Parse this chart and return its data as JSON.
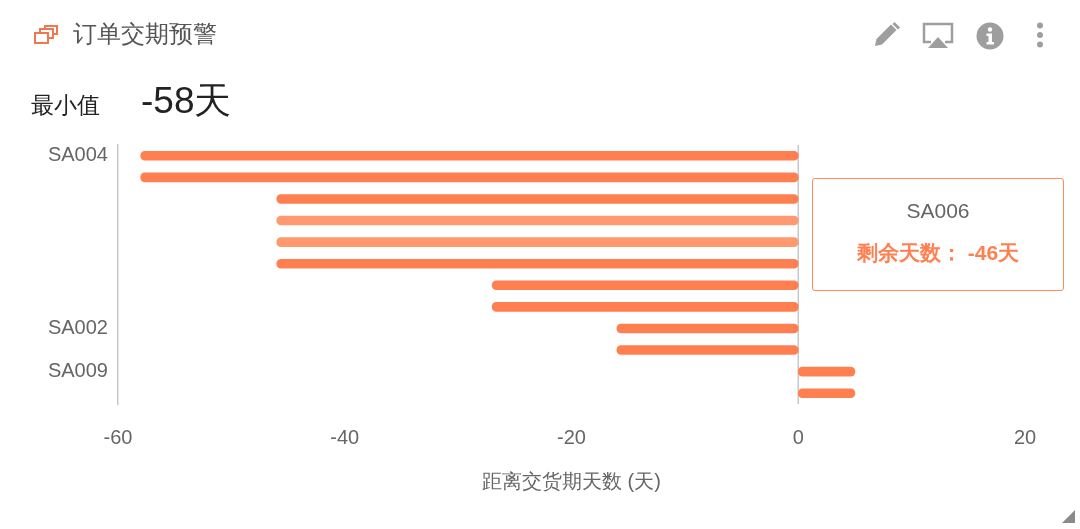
{
  "chart_data": {
    "type": "bar",
    "orientation": "horizontal",
    "title": "订单交期预警",
    "xlabel": "距离交货期天数 (天)",
    "categories": [
      "SA004",
      null,
      null,
      null,
      null,
      null,
      null,
      null,
      "SA002",
      null,
      "SA009",
      null
    ],
    "values": [
      -58,
      -58,
      -46,
      -46,
      -46,
      -46,
      -27,
      -27,
      -16,
      -16,
      5,
      5
    ],
    "colors": [
      "#ff7f50",
      "#ff7f50",
      "#ff7f50",
      "#ff9a70",
      "#ff9a70",
      "#ff7f50",
      "#ff7f50",
      "#ff7f50",
      "#ff7f50",
      "#ff7f50",
      "#ff7f50",
      "#ff7f50"
    ],
    "xlim": [
      -60,
      20
    ],
    "xticks": [
      -60,
      -40,
      -20,
      0,
      20
    ],
    "ref_lines": [
      {
        "axis": "x",
        "value": 0,
        "color": "#c8c8c8"
      }
    ],
    "annotations": [
      "最小值",
      "-58天",
      "SA006",
      "剩余天数： -46天"
    ]
  }
}
